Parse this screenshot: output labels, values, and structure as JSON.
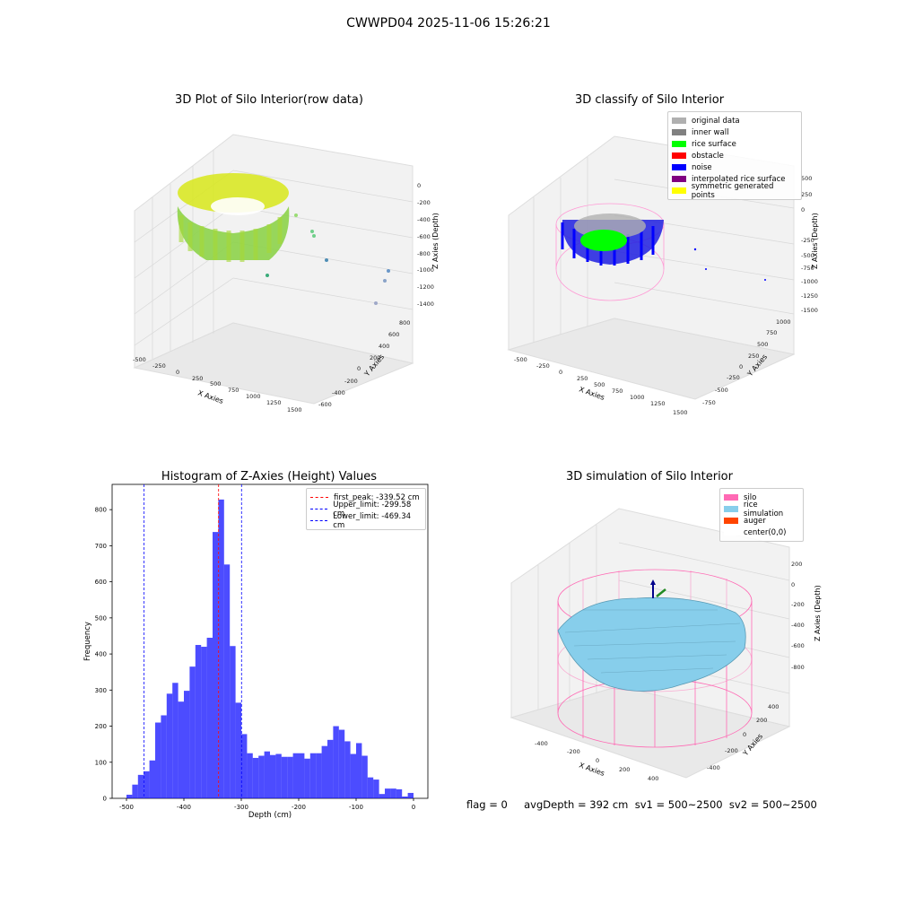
{
  "suptitle": "CWWPD04 2025-11-06 15:26:21",
  "panels": {
    "raw": {
      "title": "3D Plot of Silo Interior(row data)",
      "xlabel": "X Axies",
      "ylabel": "Y Axies",
      "zlabel": "Z Axies (Depth)",
      "xticks": [
        "-500",
        "-250",
        "0",
        "250",
        "500",
        "750",
        "1000",
        "1250",
        "1500"
      ],
      "yticks": [
        "-600",
        "-400",
        "-200",
        "0",
        "200",
        "400",
        "600",
        "800"
      ],
      "zticks": [
        "0",
        "-200",
        "-400",
        "-600",
        "-800",
        "-1000",
        "-1200",
        "-1400"
      ]
    },
    "classify": {
      "title": "3D classify of Silo Interior",
      "xlabel": "X Axies",
      "ylabel": "Y Axies",
      "zlabel": "Z Axies (Depth)",
      "xticks": [
        "-500",
        "-250",
        "0",
        "250",
        "500",
        "750",
        "1000",
        "1250",
        "1500"
      ],
      "yticks": [
        "-750",
        "-500",
        "-250",
        "0",
        "250",
        "500",
        "750",
        "1000"
      ],
      "zticks": [
        "500",
        "250",
        "0",
        "-250",
        "-500",
        "-750",
        "-1000",
        "-1250",
        "-1500"
      ],
      "legend": [
        {
          "label": "original data",
          "color": "#b0b0b0"
        },
        {
          "label": "inner wall",
          "color": "#808080"
        },
        {
          "label": "rice surface",
          "color": "#00ff00"
        },
        {
          "label": "obstacle",
          "color": "#ff0000"
        },
        {
          "label": "noise",
          "color": "#0000ff"
        },
        {
          "label": "interpolated rice surface",
          "color": "#800080"
        },
        {
          "label": "symmetric generated points",
          "color": "#ffff00"
        }
      ]
    },
    "simulation": {
      "title": "3D simulation of Silo Interior",
      "xlabel": "X Axies",
      "ylabel": "Y Axies",
      "zlabel": "Z Axies (Depth)",
      "xticks": [
        "-400",
        "-200",
        "0",
        "200",
        "400"
      ],
      "yticks": [
        "-400",
        "-200",
        "0",
        "200",
        "400"
      ],
      "zticks": [
        "200",
        "0",
        "-200",
        "-400",
        "-600",
        "-800"
      ],
      "legend": [
        {
          "label": "silo",
          "color": "#ff69b4"
        },
        {
          "label": "rice simulation",
          "color": "#87ceeb"
        },
        {
          "label": "auger",
          "color": "#ff4500"
        },
        {
          "label": "center(0,0)",
          "color": "#ffffff"
        }
      ]
    }
  },
  "chart_data": {
    "type": "bar",
    "title": "Histogram of Z-Axies (Height) Values",
    "xlabel": "Depth (cm)",
    "ylabel": "Frequency",
    "xlim": [
      -525,
      25
    ],
    "ylim": [
      0,
      870
    ],
    "xticks": [
      -500,
      -400,
      -300,
      -200,
      -100,
      0
    ],
    "yticks": [
      0,
      100,
      200,
      300,
      400,
      500,
      600,
      700,
      800
    ],
    "bin_width": 10,
    "bin_starts": [
      -500,
      -490,
      -480,
      -470,
      -460,
      -450,
      -440,
      -430,
      -420,
      -410,
      -400,
      -390,
      -380,
      -370,
      -360,
      -350,
      -340,
      -330,
      -320,
      -310,
      -300,
      -290,
      -280,
      -270,
      -260,
      -250,
      -240,
      -230,
      -220,
      -210,
      -200,
      -190,
      -180,
      -170,
      -160,
      -150,
      -140,
      -130,
      -120,
      -110,
      -100,
      -90,
      -80,
      -70,
      -60,
      -50,
      -40,
      -30,
      -20,
      -10
    ],
    "counts": [
      10,
      38,
      65,
      75,
      105,
      210,
      230,
      290,
      320,
      268,
      298,
      365,
      425,
      420,
      445,
      738,
      828,
      648,
      422,
      265,
      178,
      125,
      112,
      118,
      130,
      120,
      123,
      115,
      115,
      125,
      125,
      110,
      125,
      125,
      145,
      162,
      200,
      190,
      158,
      123,
      153,
      118,
      58,
      52,
      12,
      27,
      27,
      25,
      5,
      15
    ],
    "color": "#0000ff",
    "vlines": [
      {
        "label": "first_peak: -339.52 cm",
        "x": -339.52,
        "color": "#ff0000"
      },
      {
        "label": "Upper_limit: -299.58 cm",
        "x": -299.58,
        "color": "#0000ff"
      },
      {
        "label": "Lower_limit: -469.34 cm",
        "x": -469.34,
        "color": "#0000ff"
      }
    ]
  },
  "status": {
    "flag_text": "flag = 0     avgDepth = 392 cm  sv1 = 500~2500  sv2 = 500~2500"
  }
}
